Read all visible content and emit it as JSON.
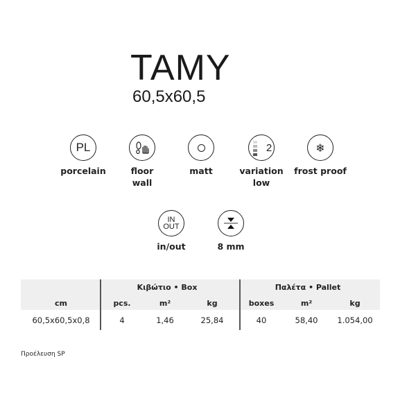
{
  "product": {
    "name": "TAMY",
    "size": "60,5x60,5"
  },
  "features": [
    {
      "icon": "pl-icon",
      "icon_text": "PL",
      "label": "porcelain"
    },
    {
      "icon": "foot-hand-icon",
      "label": "floor",
      "label2": "wall"
    },
    {
      "icon": "matt-circle-icon",
      "label": "matt"
    },
    {
      "icon": "variation-icon",
      "icon_text": "2",
      "label": "variation",
      "label2": "low"
    },
    {
      "icon": "snowflake-icon",
      "label": "frost proof"
    },
    {
      "icon": "in-out-icon",
      "icon_text": "IN",
      "icon_text2": "OUT",
      "label": "in/out"
    },
    {
      "icon": "thickness-icon",
      "label": "8 mm"
    }
  ],
  "table": {
    "groups": [
      "Κιβώτιο • Box",
      "Παλέτα • Pallet"
    ],
    "columns": [
      "cm",
      "pcs.",
      "m²",
      "kg",
      "boxes",
      "m²",
      "kg"
    ],
    "rows": [
      [
        "60,5x60,5x0,8",
        "4",
        "1,46",
        "25,84",
        "40",
        "58,40",
        "1.054,00"
      ]
    ]
  },
  "footer": "Προέλευση SP"
}
